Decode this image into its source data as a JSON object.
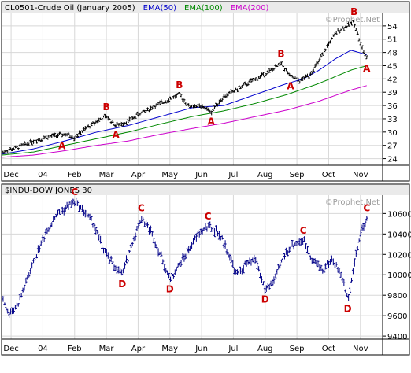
{
  "chart_data": [
    {
      "type": "line",
      "style": "ohlc",
      "title": "CL0501-Crude Oil (January 2005)",
      "watermark": "©Prophet.Net",
      "ylim": [
        22.5,
        57
      ],
      "y_ticks": [
        24,
        27,
        30,
        33,
        36,
        39,
        42,
        45,
        48,
        51,
        54
      ],
      "x_ticks": [
        "Dec",
        "04",
        "Feb",
        "Mar",
        "Apr",
        "May",
        "Jun",
        "Jul",
        "Aug",
        "Sep",
        "Oct",
        "Nov"
      ],
      "x_tick_months": [
        0.3,
        1.3,
        2.3,
        3.3,
        4.3,
        5.3,
        6.3,
        7.3,
        8.3,
        9.3,
        10.3,
        11.3
      ],
      "grid": true,
      "legend": "top-left",
      "series": [
        {
          "name": "CL0501-Crude Oil (January 2005)",
          "color": "#000000",
          "x": [
            0,
            0.5,
            1,
            1.5,
            2,
            2.3,
            2.6,
            3,
            3.3,
            3.6,
            4,
            4.3,
            4.6,
            5,
            5.3,
            5.6,
            5.9,
            6.1,
            6.4,
            6.6,
            6.8,
            7,
            7.5,
            8,
            8.5,
            8.8,
            9.1,
            9.4,
            9.7,
            10,
            10.3,
            10.6,
            10.9,
            11.1,
            11.3,
            11.5
          ],
          "y": [
            25.5,
            26.5,
            28,
            29,
            29.5,
            28.8,
            30.5,
            32.5,
            33.5,
            31.5,
            32.5,
            34,
            35,
            36.5,
            37.5,
            38.5,
            35.8,
            36,
            35.5,
            34.5,
            36.5,
            38,
            40,
            42,
            44,
            45.5,
            42.5,
            41.5,
            43,
            46,
            50,
            53,
            54,
            55,
            50,
            46.5
          ]
        },
        {
          "name": "EMA(50)",
          "color": "#0000cc",
          "x": [
            0,
            1,
            2,
            3,
            4,
            5,
            6,
            7,
            8,
            9,
            9.5,
            10,
            10.5,
            11,
            11.5
          ],
          "y": [
            25,
            26.2,
            28,
            30,
            31.5,
            33.5,
            35.5,
            36,
            38.5,
            41,
            42,
            44,
            46.5,
            48.5,
            47.5
          ]
        },
        {
          "name": "EMA(100)",
          "color": "#008800",
          "x": [
            0,
            1,
            2,
            3,
            4,
            5,
            6,
            7,
            8,
            9,
            10,
            11,
            11.5
          ],
          "y": [
            24.8,
            25.5,
            27,
            28.5,
            30,
            31.8,
            33.5,
            34.8,
            36.5,
            38.5,
            41,
            44,
            45
          ]
        },
        {
          "name": "EMA(200)",
          "color": "#cc00cc",
          "x": [
            0,
            1,
            2,
            3,
            4,
            5,
            6,
            7,
            8,
            9,
            10,
            11,
            11.5
          ],
          "y": [
            24.3,
            24.8,
            25.8,
            27,
            28,
            29.5,
            30.8,
            32,
            33.5,
            35,
            37,
            39.5,
            40.5
          ]
        }
      ],
      "annotations": [
        {
          "label": "A",
          "x": 1.9,
          "y": 29,
          "position": "below"
        },
        {
          "label": "B",
          "x": 3.3,
          "y": 33.5,
          "position": "above"
        },
        {
          "label": "A",
          "x": 3.6,
          "y": 31.5,
          "position": "below"
        },
        {
          "label": "B",
          "x": 5.6,
          "y": 38.5,
          "position": "above"
        },
        {
          "label": "A",
          "x": 6.6,
          "y": 34.5,
          "position": "below"
        },
        {
          "label": "B",
          "x": 8.8,
          "y": 45.5,
          "position": "above"
        },
        {
          "label": "A",
          "x": 9.1,
          "y": 42.5,
          "position": "below"
        },
        {
          "label": "B",
          "x": 11.1,
          "y": 55,
          "position": "above"
        },
        {
          "label": "A",
          "x": 11.5,
          "y": 46.5,
          "position": "below"
        }
      ]
    },
    {
      "type": "line",
      "style": "ohlc",
      "title": "$INDU-DOW JONES 30",
      "watermark": "©Prophet.Net",
      "ylim": [
        9370,
        10780
      ],
      "y_ticks": [
        9400,
        9600,
        9800,
        10000,
        10200,
        10400,
        10600
      ],
      "x_ticks": [
        "Dec",
        "04",
        "Feb",
        "Mar",
        "Apr",
        "May",
        "Jun",
        "Jul",
        "Aug",
        "Sep",
        "Oct",
        "Nov"
      ],
      "x_tick_months": [
        0.3,
        1.3,
        2.3,
        3.3,
        4.3,
        5.3,
        6.3,
        7.3,
        8.3,
        9.3,
        10.3,
        11.3
      ],
      "grid": true,
      "series": [
        {
          "name": "$INDU-DOW JONES 30",
          "color": "#000088",
          "x": [
            0,
            0.2,
            0.5,
            0.8,
            1.1,
            1.4,
            1.7,
            2,
            2.3,
            2.6,
            2.9,
            3.2,
            3.5,
            3.8,
            4.1,
            4.4,
            4.7,
            5,
            5.3,
            5.6,
            5.9,
            6.2,
            6.5,
            6.8,
            7.1,
            7.4,
            7.7,
            8,
            8.3,
            8.6,
            8.9,
            9.2,
            9.5,
            9.8,
            10.1,
            10.4,
            10.7,
            10.9,
            11.1,
            11.3,
            11.5
          ],
          "y": [
            9820,
            9620,
            9700,
            9950,
            10200,
            10420,
            10580,
            10650,
            10720,
            10620,
            10500,
            10250,
            10100,
            10000,
            10300,
            10560,
            10430,
            10200,
            9950,
            10100,
            10250,
            10400,
            10480,
            10420,
            10250,
            10000,
            10100,
            10150,
            9850,
            9950,
            10200,
            10300,
            10340,
            10150,
            10050,
            10150,
            10000,
            9760,
            10100,
            10400,
            10560
          ]
        }
      ],
      "annotations": [
        {
          "label": "C",
          "x": 2.3,
          "y": 10720,
          "position": "above"
        },
        {
          "label": "D",
          "x": 3.8,
          "y": 10000,
          "position": "below"
        },
        {
          "label": "C",
          "x": 4.4,
          "y": 10560,
          "position": "above"
        },
        {
          "label": "D",
          "x": 5.3,
          "y": 9950,
          "position": "below"
        },
        {
          "label": "C",
          "x": 6.5,
          "y": 10480,
          "position": "above"
        },
        {
          "label": "D",
          "x": 8.3,
          "y": 9850,
          "position": "below"
        },
        {
          "label": "C",
          "x": 9.5,
          "y": 10340,
          "position": "above"
        },
        {
          "label": "D",
          "x": 10.9,
          "y": 9760,
          "position": "below"
        },
        {
          "label": "C",
          "x": 11.5,
          "y": 10560,
          "position": "above"
        }
      ]
    }
  ],
  "colors": {
    "background": "#ffffff",
    "grid": "#d8d8d8",
    "frame": "#000000",
    "annotation": "#cc0000",
    "legend_bar": "#eaeaea",
    "watermark": "#9a9a9a"
  }
}
